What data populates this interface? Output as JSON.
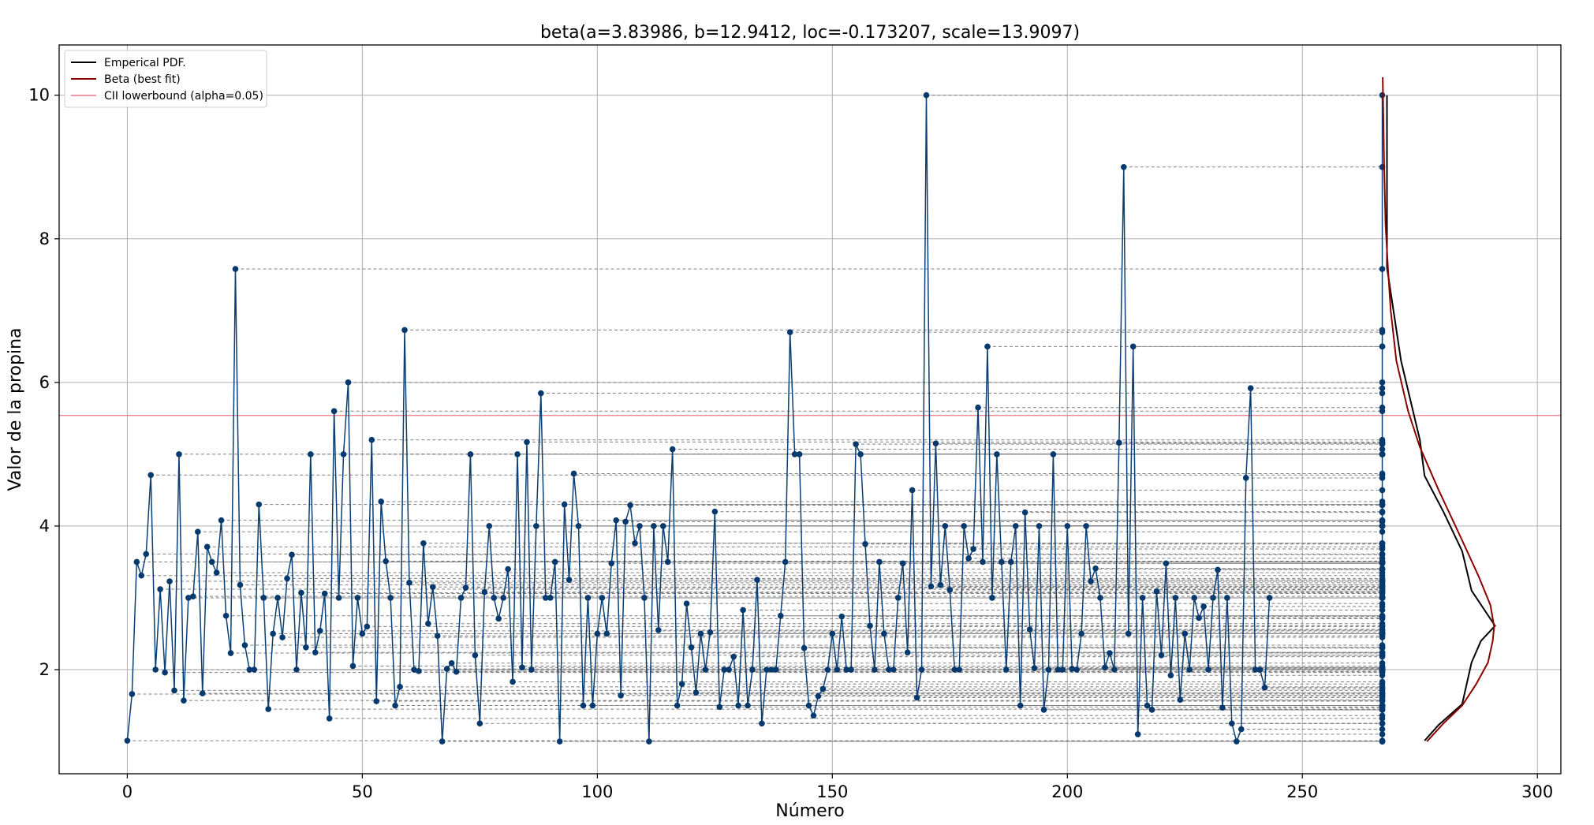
{
  "chart_data": {
    "type": "line",
    "title": "beta(a=3.83986, b=12.9412, loc=-0.173207, scale=13.9097)",
    "xlabel": "Número",
    "ylabel": "Valor de la propina",
    "xlim": [
      -14.5,
      305
    ],
    "ylim": [
      0.55,
      10.7
    ],
    "xticks": [
      0,
      50,
      100,
      150,
      200,
      250,
      300
    ],
    "yticks": [
      2,
      4,
      6,
      8,
      10
    ],
    "grid": true,
    "legend_position": "top-left",
    "legend": [
      {
        "label": "Emperical PDF.",
        "color": "#000000"
      },
      {
        "label": "Beta (best fit)",
        "color": "#8b0000"
      },
      {
        "label": "CII lowerbound (alpha=0.05)",
        "color": "#e8768a"
      }
    ],
    "colors": {
      "series": "#0b3f73",
      "marker": "#063a6e",
      "dashed": "#808080",
      "pdf": "#000000",
      "fit": "#8b0000",
      "cii": "#e8768a",
      "grid": "#b0b0b0"
    },
    "series": {
      "x_start": 0,
      "y": [
        1.01,
        1.66,
        3.5,
        3.31,
        3.61,
        4.71,
        2.0,
        3.12,
        1.96,
        3.23,
        1.71,
        5.0,
        1.57,
        3.0,
        3.02,
        3.92,
        1.67,
        3.71,
        3.5,
        3.35,
        4.08,
        2.75,
        2.23,
        7.58,
        3.18,
        2.34,
        2.0,
        2.0,
        4.3,
        3.0,
        1.45,
        2.5,
        3.0,
        2.45,
        3.27,
        3.6,
        2.0,
        3.07,
        2.31,
        5.0,
        2.24,
        2.54,
        3.06,
        1.32,
        5.6,
        3.0,
        5.0,
        6.0,
        2.05,
        3.0,
        2.5,
        2.6,
        5.2,
        1.56,
        4.34,
        3.51,
        3.0,
        1.5,
        1.76,
        6.73,
        3.21,
        2.0,
        1.98,
        3.76,
        2.64,
        3.15,
        2.47,
        1.0,
        2.01,
        2.09,
        1.97,
        3.0,
        3.14,
        5.0,
        2.2,
        1.25,
        3.08,
        4.0,
        3.0,
        2.71,
        3.0,
        3.4,
        1.83,
        5.0,
        2.03,
        5.17,
        2.0,
        4.0,
        5.85,
        3.0,
        3.0,
        3.5,
        1.0,
        4.3,
        3.25,
        4.73,
        4.0,
        1.5,
        3.0,
        1.5,
        2.5,
        3.0,
        2.5,
        3.48,
        4.08,
        1.64,
        4.06,
        4.29,
        3.76,
        4.0,
        3.0,
        1.0,
        4.0,
        2.55,
        4.0,
        3.5,
        5.07,
        1.5,
        1.8,
        2.92,
        2.31,
        1.68,
        2.5,
        2.0,
        2.52,
        4.2,
        1.48,
        2.0,
        2.0,
        2.18,
        1.5,
        2.83,
        1.5,
        2.0,
        3.25,
        1.25,
        2.0,
        2.0,
        2.0,
        2.75,
        3.5,
        6.7,
        5.0,
        5.0,
        2.3,
        1.5,
        1.36,
        1.63,
        1.73,
        2.0,
        2.5,
        2.0,
        2.74,
        2.0,
        2.0,
        5.14,
        5.0,
        3.75,
        2.61,
        2.0,
        3.5,
        2.5,
        2.0,
        2.0,
        3.0,
        3.48,
        2.24,
        4.5,
        1.61,
        2.0,
        10.0,
        3.16,
        5.15,
        3.18,
        4.0,
        3.11,
        2.0,
        2.0,
        4.0,
        3.55,
        3.68,
        5.65,
        3.5,
        6.5,
        3.0,
        5.0,
        3.5,
        2.0,
        3.5,
        4.0,
        1.5,
        4.19,
        2.56,
        2.02,
        4.0,
        1.44,
        2.0,
        5.0,
        2.0,
        2.0,
        4.0,
        2.01,
        2.0,
        2.5,
        4.0,
        3.23,
        3.41,
        3.0,
        2.03,
        2.23,
        2.0,
        5.16,
        9.0,
        2.5,
        6.5,
        1.1,
        3.0,
        1.5,
        1.44,
        3.09,
        2.2,
        3.48,
        1.92,
        3.0,
        1.58,
        2.5,
        2.0,
        3.0,
        2.72,
        2.88,
        2.0,
        3.0,
        3.39,
        1.47,
        3.0,
        1.25,
        1.0,
        1.17,
        4.67,
        5.92,
        2.0,
        2.0,
        1.75,
        3.0
      ]
    },
    "projection_x": 267,
    "cii_lowerbound": 5.54,
    "empirical_pdf": {
      "x": [
        276,
        279,
        284,
        286,
        288,
        291,
        286,
        284,
        280,
        276,
        275,
        271,
        268,
        268
      ],
      "y": [
        1.01,
        1.23,
        1.52,
        2.1,
        2.4,
        2.61,
        3.1,
        3.65,
        4.2,
        4.7,
        5.2,
        6.3,
        7.6,
        10.0
      ]
    },
    "beta_fit": {
      "x": [
        276.5,
        280,
        284,
        287,
        289.5,
        290.5,
        290.8,
        290,
        287.5,
        284,
        279,
        275,
        272.5,
        270,
        268.8,
        268.2,
        267.7,
        267.4,
        267.2,
        267.1
      ],
      "y": [
        1.0,
        1.25,
        1.5,
        1.8,
        2.1,
        2.4,
        2.6,
        2.9,
        3.3,
        3.8,
        4.5,
        5.1,
        5.6,
        6.3,
        7.0,
        7.6,
        8.2,
        9.0,
        9.8,
        10.25
      ]
    }
  }
}
